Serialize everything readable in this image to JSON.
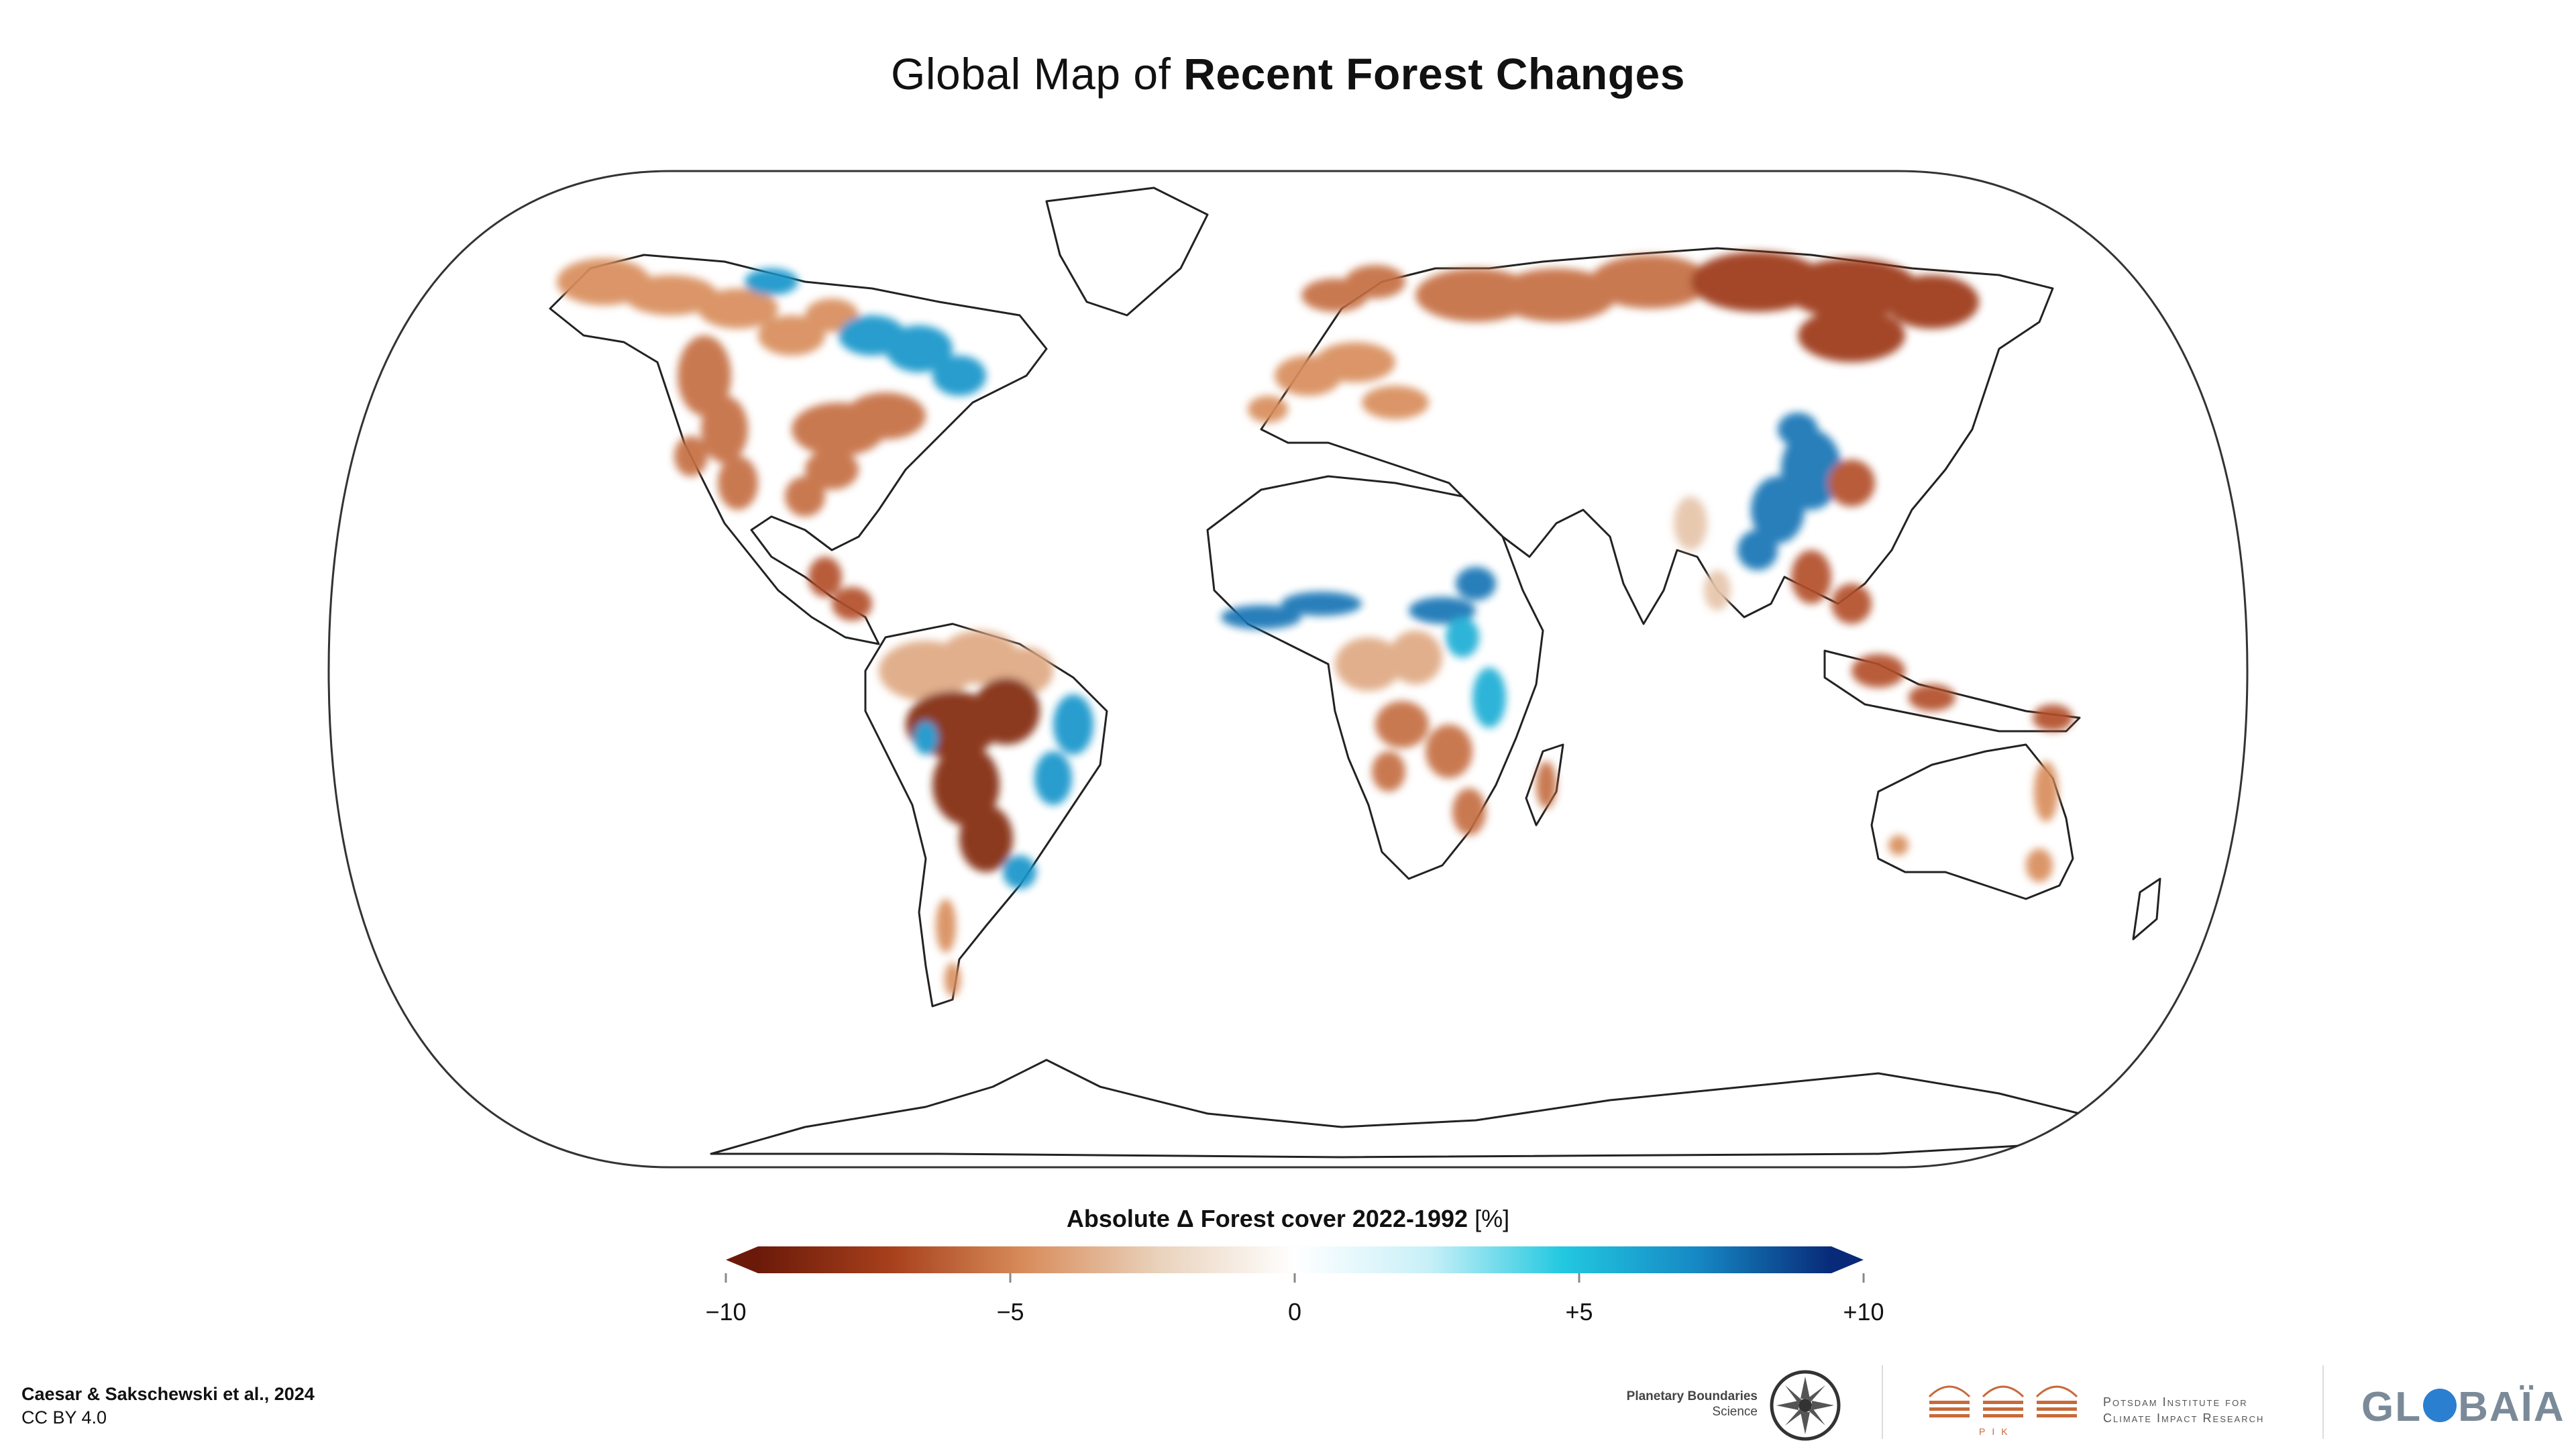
{
  "title": {
    "light": "Global Map of ",
    "bold": "Recent Forest Changes"
  },
  "legend": {
    "label_bold": "Absolute Δ Forest cover 2022-1992",
    "label_unit": "[%]",
    "min": -10,
    "max": 10,
    "ticks": [
      {
        "value": -10,
        "label": "−10"
      },
      {
        "value": -5,
        "label": "−5"
      },
      {
        "value": 0,
        "label": "0"
      },
      {
        "value": 5,
        "label": "+5"
      },
      {
        "value": 10,
        "label": "+10"
      }
    ],
    "colors": [
      "#6b1a0a",
      "#a8401c",
      "#d88d5c",
      "#ead3bd",
      "#ffffff",
      "#c8f0f8",
      "#22c8e0",
      "#1688c4",
      "#082a78"
    ]
  },
  "credits": {
    "line1": "Caesar & Sakschewski et al., 2024",
    "line2": "CC BY 4.0"
  },
  "logos": {
    "pbs_line1": "Planetary Boundaries",
    "pbs_line2": "Science",
    "pik_line1": "Potsdam Institute for",
    "pik_line2": "Climate Impact Research",
    "pik_abbr": "PIK",
    "globaia_pre": "GL",
    "globaia_post": "BAÏA"
  },
  "map": {
    "regions": [
      {
        "name": "alaska-canada",
        "value": -5
      },
      {
        "name": "canada-east",
        "value": 7
      },
      {
        "name": "usa-west",
        "value": -6
      },
      {
        "name": "usa-east",
        "value": -6
      },
      {
        "name": "central-america",
        "value": -7
      },
      {
        "name": "amazon",
        "value": -4
      },
      {
        "name": "brazil-arc",
        "value": -9
      },
      {
        "name": "brazil-atlantic",
        "value": 7
      },
      {
        "name": "patagonia",
        "value": -5
      },
      {
        "name": "scandinavia",
        "value": -6
      },
      {
        "name": "europe",
        "value": -5
      },
      {
        "name": "russia-taiga",
        "value": -6
      },
      {
        "name": "siberia-east",
        "value": -8
      },
      {
        "name": "sahel-band",
        "value": 8
      },
      {
        "name": "congo",
        "value": -4
      },
      {
        "name": "east-africa",
        "value": 6
      },
      {
        "name": "southern-africa",
        "value": -6
      },
      {
        "name": "madagascar",
        "value": -6
      },
      {
        "name": "china-south",
        "value": 8
      },
      {
        "name": "southeast-asia",
        "value": -7
      },
      {
        "name": "indonesia",
        "value": -7
      },
      {
        "name": "india",
        "value": -3
      },
      {
        "name": "australia-east",
        "value": -5
      }
    ]
  }
}
